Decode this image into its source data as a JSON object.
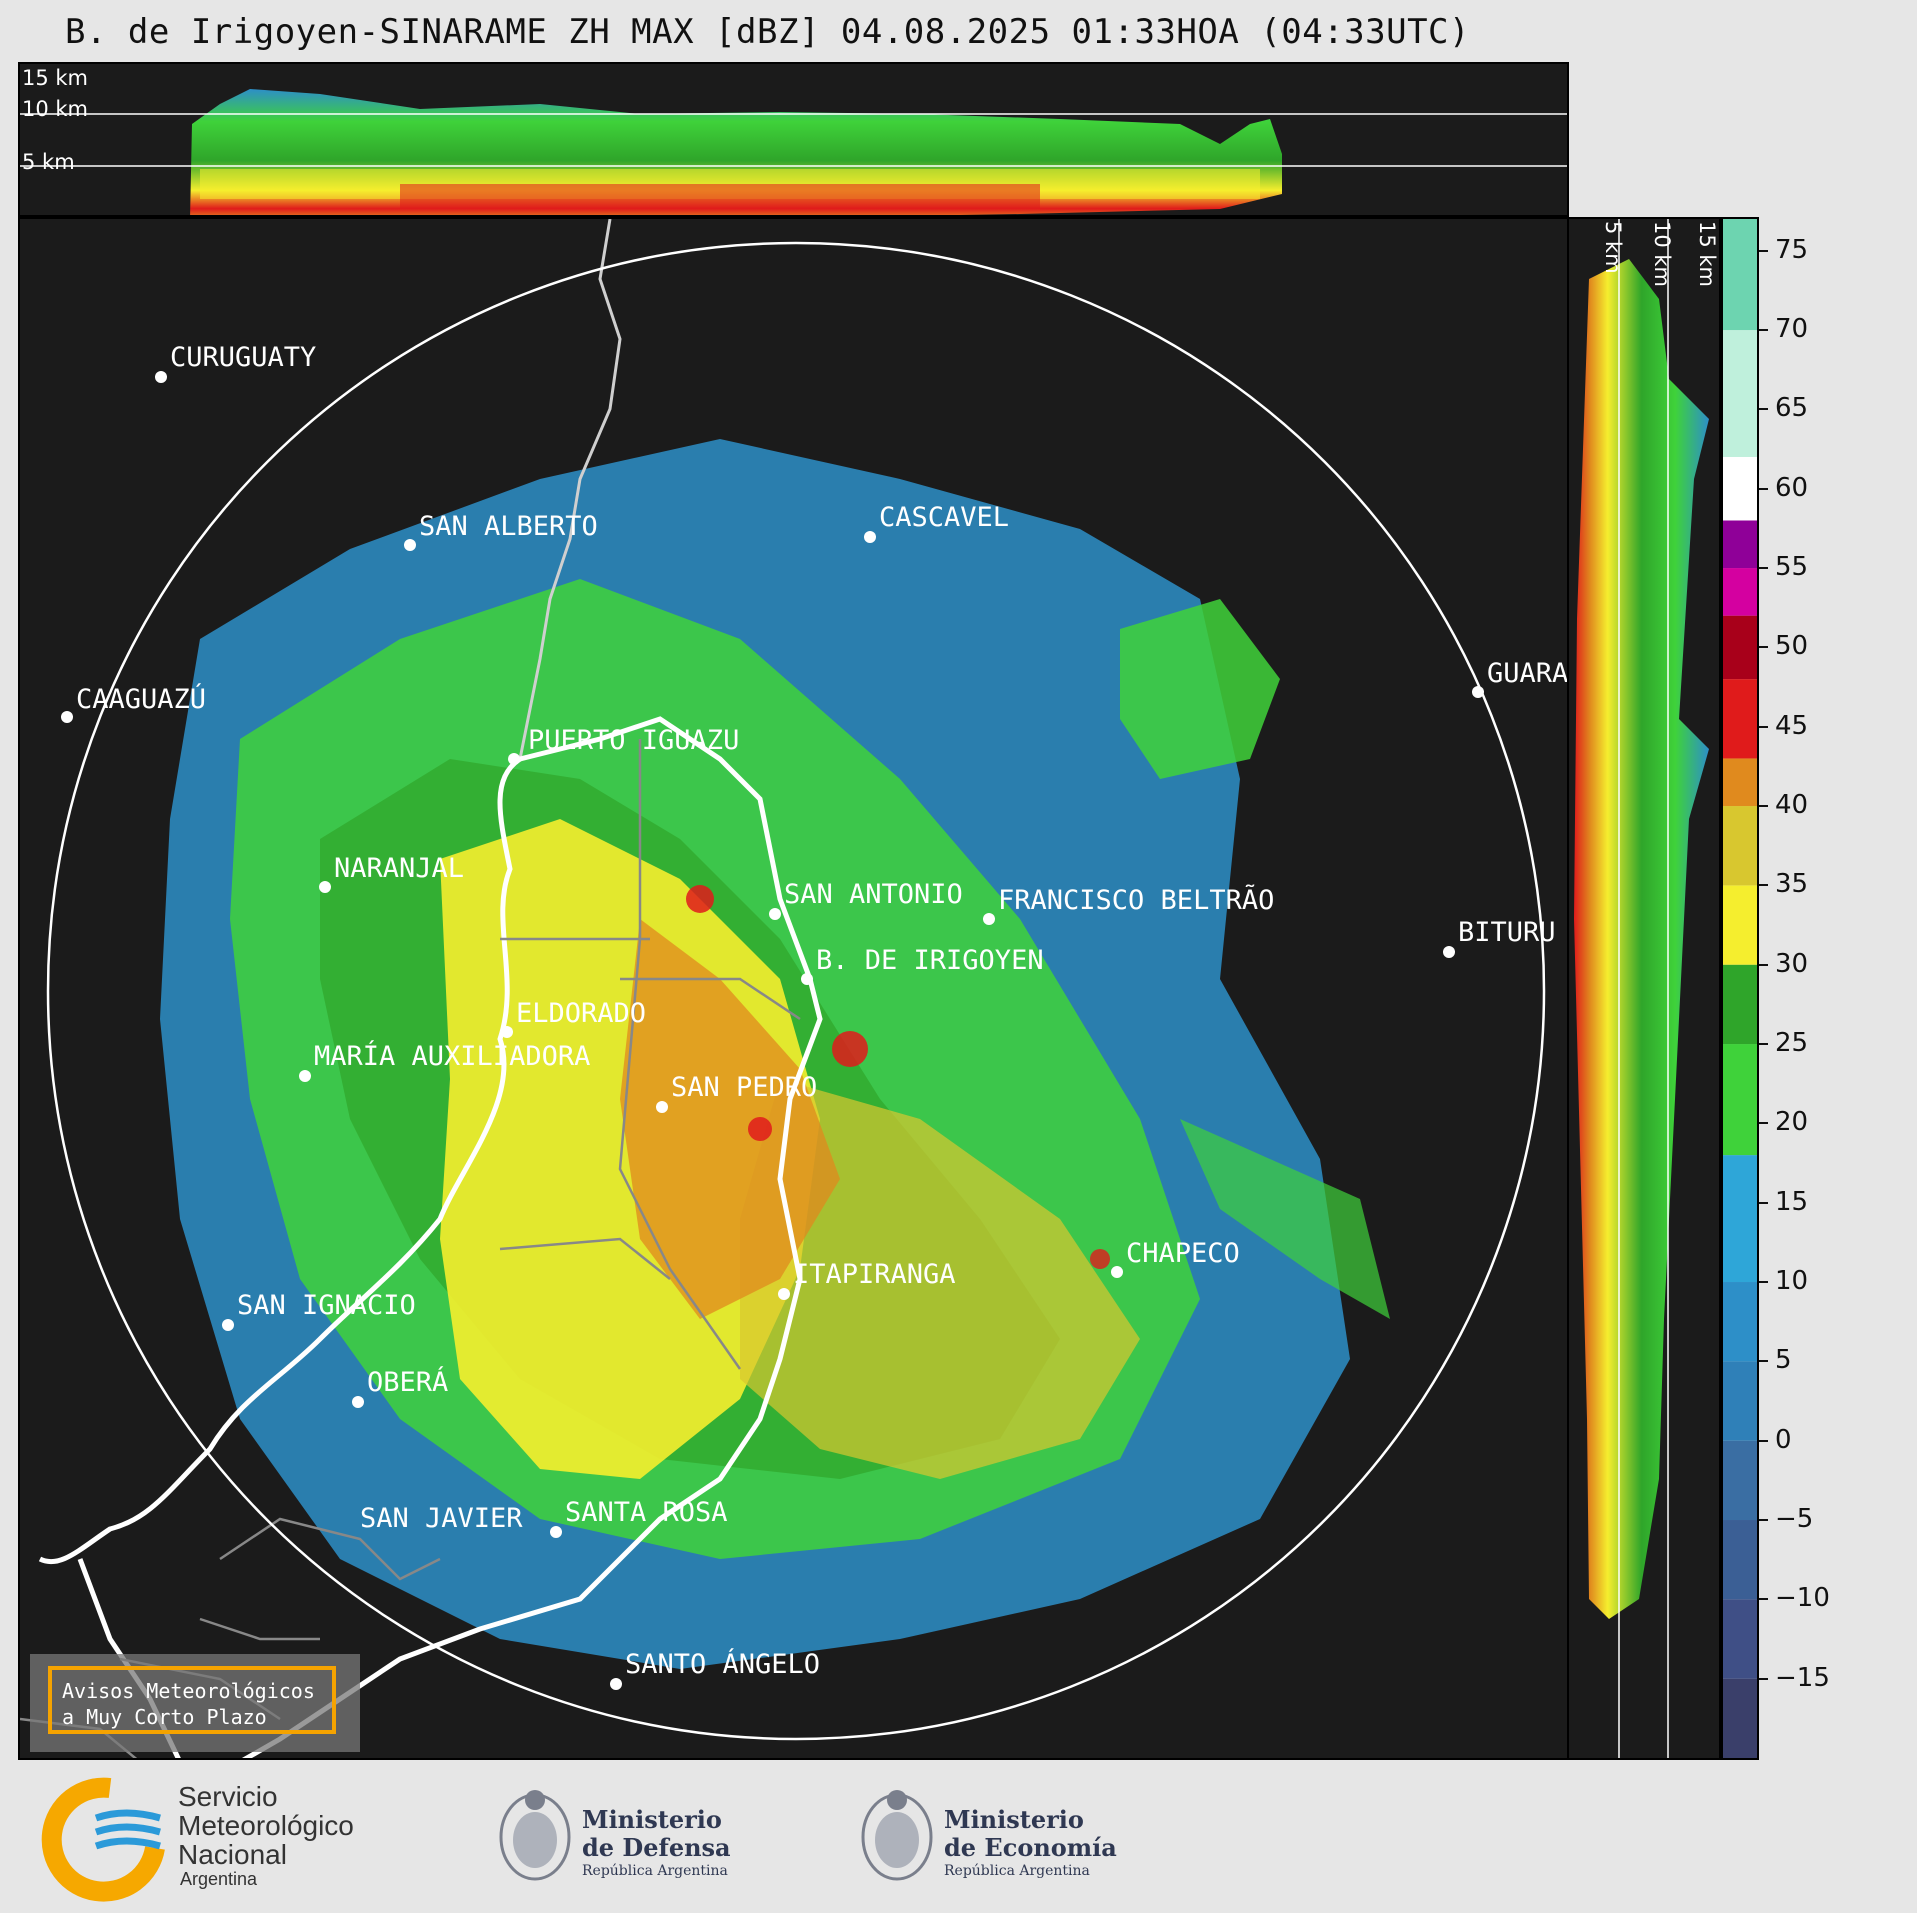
{
  "title": "B. de Irigoyen-SINARAME ZH MAX [dBZ] 04.08.2025 01:33HOA (04:33UTC)",
  "top_panel": {
    "altitude_labels": [
      "15 km",
      "10 km",
      "5 km"
    ]
  },
  "right_panel": {
    "altitude_labels": [
      "5 km",
      "10 km",
      "15 km"
    ]
  },
  "colorbar": {
    "unit": "dBZ",
    "ticks": [
      "75",
      "70",
      "65",
      "60",
      "55",
      "50",
      "45",
      "40",
      "35",
      "30",
      "25",
      "20",
      "15",
      "10",
      "5",
      "0",
      "−5",
      "−10",
      "−15"
    ],
    "range": [
      -20,
      77
    ],
    "colors": {
      "c_minus20": "#3a3f6a",
      "c_minus10": "#3f4f86",
      "c_minus5": "#3b5f95",
      "c_0": "#3a6ea3",
      "c_5": "#2f80b8",
      "c_10": "#2d8fc8",
      "c_15": "#2ea6d8",
      "c_20": "#3fd23a",
      "c_25": "#2fa52a",
      "c_30": "#f5ee2e",
      "c_35": "#d8c72f",
      "c_40": "#e08a1e",
      "c_45": "#e01b1b",
      "c_50": "#a8001a",
      "c_55": "#d400a0",
      "c_58": "#8f0098",
      "c_60": "#ffffff",
      "c_65": "#bff0dc",
      "c_75": "#6dd4b0"
    }
  },
  "cities": [
    {
      "name": "CURUGUATY"
    },
    {
      "name": "SAN ALBERTO"
    },
    {
      "name": "CASCAVEL"
    },
    {
      "name": "CAAGUAZÚ"
    },
    {
      "name": "GUARA"
    },
    {
      "name": "PUERTO IGUAZU"
    },
    {
      "name": "NARANJAL"
    },
    {
      "name": "SAN ANTONIO"
    },
    {
      "name": "FRANCISCO BELTRÃO"
    },
    {
      "name": "B. DE IRIGOYEN"
    },
    {
      "name": "BITURU"
    },
    {
      "name": "ELDORADO"
    },
    {
      "name": "MARÍA AUXILIADORA"
    },
    {
      "name": "SAN PEDRO"
    },
    {
      "name": "CHAPECO"
    },
    {
      "name": "ITAPIRANGA"
    },
    {
      "name": "SAN IGNACIO"
    },
    {
      "name": "OBERÁ"
    },
    {
      "name": "SAN JAVIER"
    },
    {
      "name": "SANTA ROSA"
    },
    {
      "name": "SANTO ÁNGELO"
    }
  ],
  "warning_box": {
    "line1": "Avisos Meteorológicos",
    "line2": "a Muy Corto Plazo"
  },
  "footer": {
    "smn": {
      "line1": "Servicio",
      "line2": "Meteorológico",
      "line3": "Nacional",
      "line4": "Argentina"
    },
    "defensa": {
      "line1": "Ministerio",
      "line2": "de Defensa",
      "line3": "República Argentina"
    },
    "economia": {
      "line1": "Ministerio",
      "line2": "de Economía",
      "line3": "República Argentina"
    }
  }
}
